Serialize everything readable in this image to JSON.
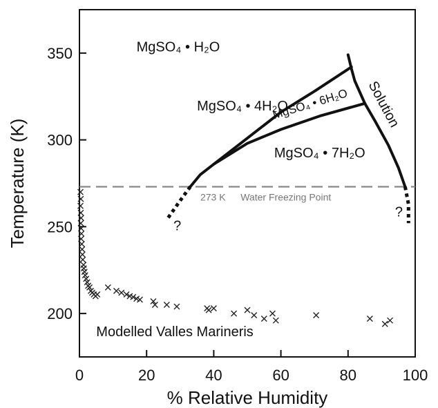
{
  "chart_data": {
    "type": "scatter",
    "xlabel": "% Relative Humidity",
    "ylabel": "Temperature (K)",
    "xlim": [
      0,
      100
    ],
    "ylim": [
      175,
      375
    ],
    "xticks": [
      0,
      20,
      40,
      60,
      80,
      100
    ],
    "yticks": [
      200,
      250,
      300,
      350
    ],
    "grid": false,
    "reference_line": {
      "y": 273,
      "label_value": "273 K",
      "label_text": "Water Freezing Point",
      "style": "dashed"
    },
    "region_labels": [
      {
        "id": "monohydrate",
        "text": "MgSO₄ • H₂O",
        "x": 17,
        "y": 351
      },
      {
        "id": "tetrahydrate",
        "text": "MgSO₄ • 4H₂O",
        "x": 35,
        "y": 317
      },
      {
        "id": "hexahydrate",
        "text": "MgSO₄ • 6H₂O",
        "x": 58,
        "y": 312
      },
      {
        "id": "heptahydrate",
        "text": "MgSO₄ • 7H₂O",
        "x": 58,
        "y": 290
      },
      {
        "id": "solution",
        "text": "Solution",
        "x": 86,
        "y": 332
      },
      {
        "id": "valles",
        "text": "Modelled Valles Marineris",
        "x": 5,
        "y": 187
      }
    ],
    "unknown_markers": [
      {
        "text": "?",
        "x": 28,
        "y": 248
      },
      {
        "text": "?",
        "x": 94,
        "y": 256
      }
    ],
    "phase_boundaries": [
      {
        "name": "H2O/4H2O boundary",
        "points": [
          [
            33,
            273
          ],
          [
            36,
            280
          ],
          [
            40,
            286
          ],
          [
            48,
            298
          ],
          [
            60,
            316
          ],
          [
            70,
            328
          ],
          [
            81,
            342
          ]
        ]
      },
      {
        "name": "4H2O/6H2O boundary",
        "points": [
          [
            40,
            286
          ],
          [
            50,
            298
          ],
          [
            60,
            306
          ],
          [
            72,
            314
          ],
          [
            85,
            321
          ]
        ]
      },
      {
        "name": "Solution upper boundary",
        "points": [
          [
            80,
            349
          ],
          [
            81,
            341
          ],
          [
            82,
            334
          ],
          [
            85,
            321
          ]
        ]
      },
      {
        "name": "Solution lower boundary",
        "points": [
          [
            85,
            321
          ],
          [
            88,
            311
          ],
          [
            92,
            297
          ],
          [
            95,
            284
          ],
          [
            97,
            273
          ]
        ]
      }
    ],
    "extrapolated_boundaries": [
      {
        "name": "left extrapolation",
        "points": [
          [
            33,
            273
          ],
          [
            30,
            265
          ],
          [
            26,
            254
          ]
        ]
      },
      {
        "name": "right extrapolation",
        "points": [
          [
            97,
            273
          ],
          [
            98,
            263
          ],
          [
            98,
            252
          ]
        ]
      }
    ],
    "series": [
      {
        "marker": "x",
        "points": [
          [
            0.3,
            270
          ],
          [
            0.4,
            266
          ],
          [
            0.3,
            262
          ],
          [
            0.4,
            258
          ],
          [
            0.5,
            255
          ],
          [
            0.4,
            252
          ],
          [
            0.5,
            249
          ],
          [
            0.6,
            246
          ],
          [
            0.5,
            243
          ],
          [
            0.7,
            240
          ],
          [
            0.8,
            237
          ],
          [
            0.9,
            234
          ],
          [
            1.0,
            231
          ],
          [
            1.2,
            228
          ],
          [
            1.3,
            226
          ],
          [
            1.5,
            224
          ],
          [
            1.7,
            222
          ],
          [
            2.0,
            220
          ],
          [
            2.3,
            218
          ],
          [
            2.6,
            216
          ],
          [
            3.0,
            215
          ],
          [
            3.4,
            213
          ],
          [
            3.8,
            212
          ],
          [
            4.3,
            211
          ],
          [
            4.8,
            210
          ],
          [
            5.3,
            211
          ],
          [
            8.5,
            215
          ],
          [
            11,
            213
          ],
          [
            12.5,
            212
          ],
          [
            14,
            211
          ],
          [
            15,
            210
          ],
          [
            16,
            209.5
          ],
          [
            17,
            208.5
          ],
          [
            18,
            208
          ],
          [
            22,
            207
          ],
          [
            22.5,
            205
          ],
          [
            26,
            205
          ],
          [
            29,
            204
          ],
          [
            38,
            203
          ],
          [
            38.5,
            202
          ],
          [
            40,
            203
          ],
          [
            46,
            200
          ],
          [
            50,
            202
          ],
          [
            52,
            199
          ],
          [
            55,
            197
          ],
          [
            57.5,
            200
          ],
          [
            58.5,
            196
          ],
          [
            70.5,
            199
          ],
          [
            86.5,
            197
          ],
          [
            91,
            194
          ],
          [
            92.5,
            196
          ]
        ]
      }
    ]
  }
}
